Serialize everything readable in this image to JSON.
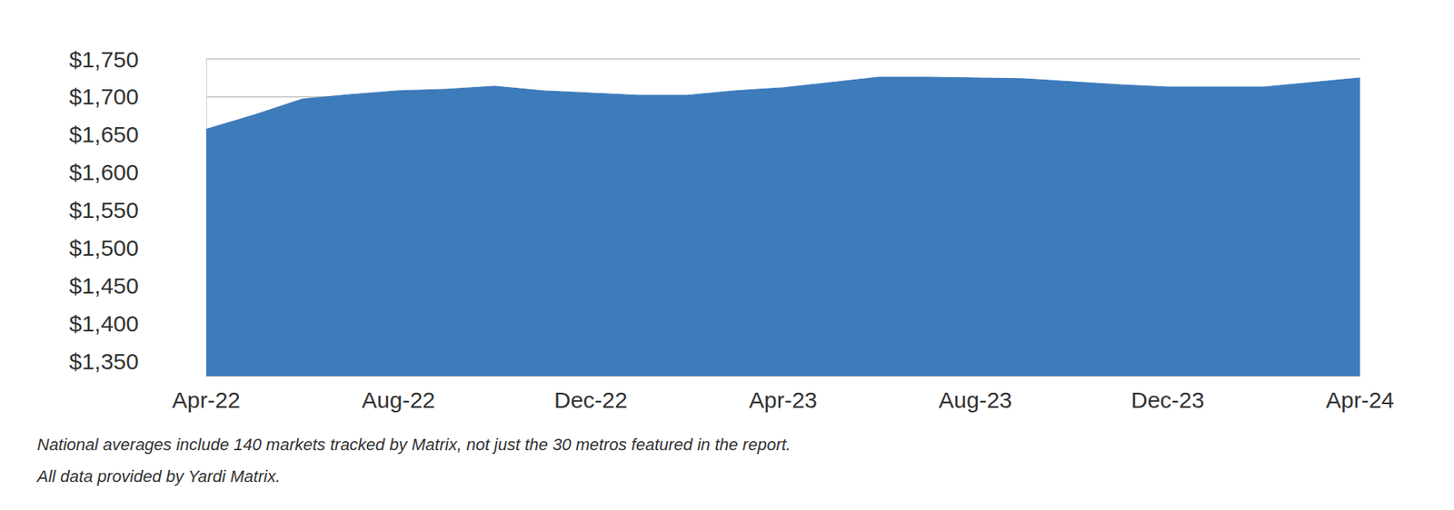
{
  "chart_data": {
    "type": "area",
    "categories": [
      "Apr-22",
      null,
      null,
      null,
      "Aug-22",
      null,
      null,
      null,
      "Dec-22",
      null,
      null,
      null,
      "Apr-23",
      null,
      null,
      null,
      "Aug-23",
      null,
      null,
      null,
      "Dec-23",
      null,
      null,
      null,
      "Apr-24"
    ],
    "values": [
      1657,
      1676,
      1697,
      1703,
      1708,
      1710,
      1714,
      1708,
      1705,
      1702,
      1702,
      1708,
      1712,
      1719,
      1726,
      1726,
      1725,
      1724,
      1720,
      1716,
      1713,
      1713,
      1713,
      1719,
      1725
    ],
    "color": "#3d7bbb",
    "ylim": [
      1330,
      1750
    ],
    "yticks": [
      {
        "value": 1350,
        "label": "$1,350"
      },
      {
        "value": 1400,
        "label": "$1,400"
      },
      {
        "value": 1450,
        "label": "$1,450"
      },
      {
        "value": 1500,
        "label": "$1,500"
      },
      {
        "value": 1550,
        "label": "$1,550"
      },
      {
        "value": 1600,
        "label": "$1,600"
      },
      {
        "value": 1650,
        "label": "$1,650"
      },
      {
        "value": 1700,
        "label": "$1,700"
      },
      {
        "value": 1750,
        "label": "$1,750"
      }
    ],
    "grid": true,
    "annotations": [
      "National averages include 140 markets tracked by Matrix, not just the 30 metros featured in the report.",
      "All data provided by Yardi Matrix."
    ]
  }
}
